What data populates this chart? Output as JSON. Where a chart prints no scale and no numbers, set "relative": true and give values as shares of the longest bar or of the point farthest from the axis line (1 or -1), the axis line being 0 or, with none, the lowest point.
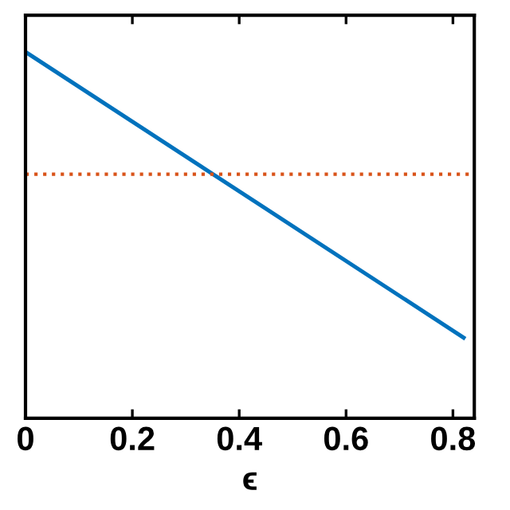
{
  "chart_data": {
    "type": "line",
    "xlabel": "ϵ",
    "relative": true,
    "x": [
      0,
      0.82
    ],
    "series": [
      {
        "color": "#0072bd",
        "values": [
          1,
          0.22
        ]
      }
    ],
    "xlim": [
      0,
      0.84
    ],
    "xticks": [
      0,
      0.2,
      0.4,
      0.6,
      0.8
    ],
    "ref_lines": [
      {
        "axis": "y",
        "value": 0.666,
        "color": "#d95319",
        "line_style": "dotted"
      }
    ],
    "grid": false,
    "legend": false,
    "line_style": "solid",
    "marker": "none"
  }
}
